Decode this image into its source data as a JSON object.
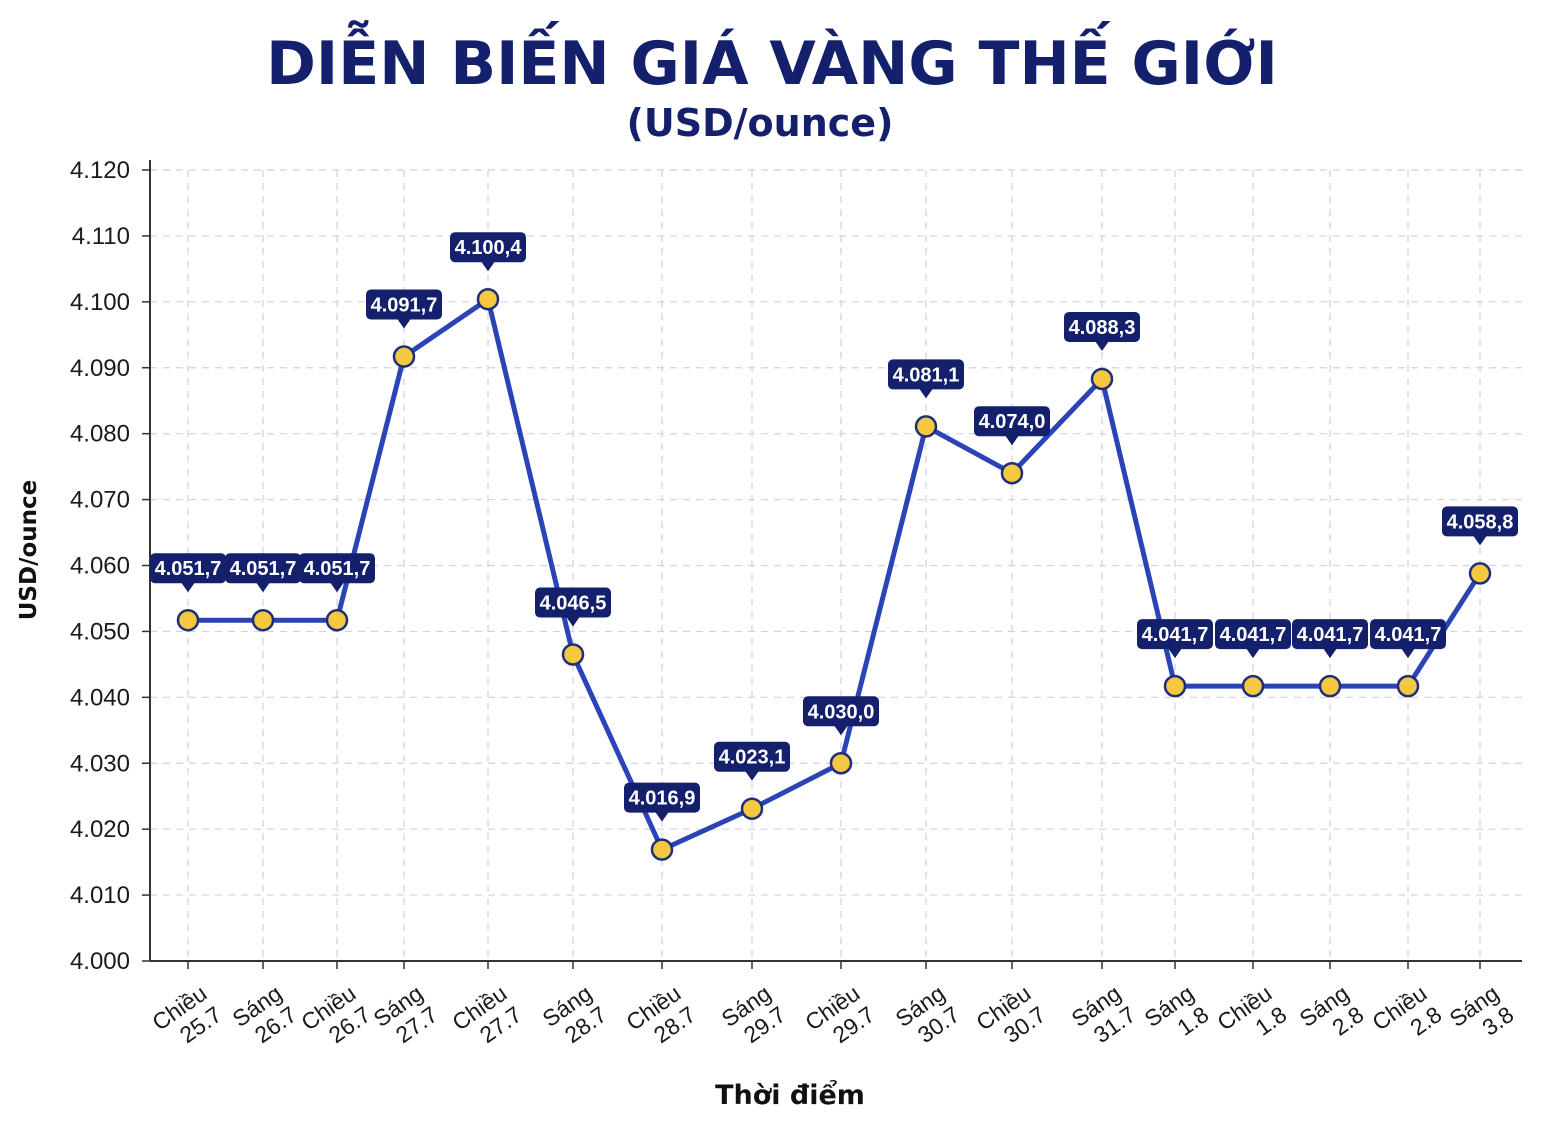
{
  "chart_data": {
    "type": "line",
    "title": "DIỄN BIẾN GIÁ VÀNG THẾ GIỚI",
    "subtitle": "(USD/ounce)",
    "xlabel": "Thời điểm",
    "ylabel": "USD/ounce",
    "ylim": [
      4000,
      4120
    ],
    "y_ticks": [
      {
        "value": 4000,
        "label": "4.000"
      },
      {
        "value": 4010,
        "label": "4.010"
      },
      {
        "value": 4020,
        "label": "4.020"
      },
      {
        "value": 4030,
        "label": "4.030"
      },
      {
        "value": 4040,
        "label": "4.040"
      },
      {
        "value": 4050,
        "label": "4.050"
      },
      {
        "value": 4060,
        "label": "4.060"
      },
      {
        "value": 4070,
        "label": "4.070"
      },
      {
        "value": 4080,
        "label": "4.080"
      },
      {
        "value": 4090,
        "label": "4.090"
      },
      {
        "value": 4100,
        "label": "4.100"
      },
      {
        "value": 4110,
        "label": "4.110"
      },
      {
        "value": 4120,
        "label": "4.120"
      }
    ],
    "grid": true,
    "categories": [
      [
        "Chiều",
        "25.7"
      ],
      [
        "Sáng",
        "26.7"
      ],
      [
        "Chiều",
        "26.7"
      ],
      [
        "Sáng",
        "27.7"
      ],
      [
        "Chiều",
        "27.7"
      ],
      [
        "Sáng",
        "28.7"
      ],
      [
        "Chiều",
        "28.7"
      ],
      [
        "Sáng",
        "29.7"
      ],
      [
        "Chiều",
        "29.7"
      ],
      [
        "Sáng",
        "30.7"
      ],
      [
        "Chiều",
        "30.7"
      ],
      [
        "Sáng",
        "31.7"
      ],
      [
        "Sáng",
        "1.8"
      ],
      [
        "Chiều",
        "1.8"
      ],
      [
        "Sáng",
        "2.8"
      ],
      [
        "Chiều",
        "2.8"
      ],
      [
        "Sáng",
        "3.8"
      ]
    ],
    "values": [
      4051.7,
      4051.7,
      4051.7,
      4091.7,
      4100.4,
      4046.5,
      4016.9,
      4023.1,
      4030.0,
      4081.1,
      4074.0,
      4088.3,
      4041.7,
      4041.7,
      4041.7,
      4041.7,
      4058.8
    ],
    "data_labels": [
      "4.051,7",
      "4.051,7",
      "4.051,7",
      "4.091,7",
      "4.100,4",
      "4.046,5",
      "4.016,9",
      "4.023,1",
      "4.030,0",
      "4.081,1",
      "4.074,0",
      "4.088,3",
      "4.041,7",
      "4.041,7",
      "4.041,7",
      "4.041,7",
      "4.058,8"
    ],
    "colors": {
      "line": "#2a44b8",
      "marker_fill": "#f5c842",
      "marker_stroke": "#1f2e7a",
      "label_bg": "#14206b",
      "label_text": "#ffffff",
      "title": "#14206b",
      "grid": "#cdd3e6"
    }
  }
}
